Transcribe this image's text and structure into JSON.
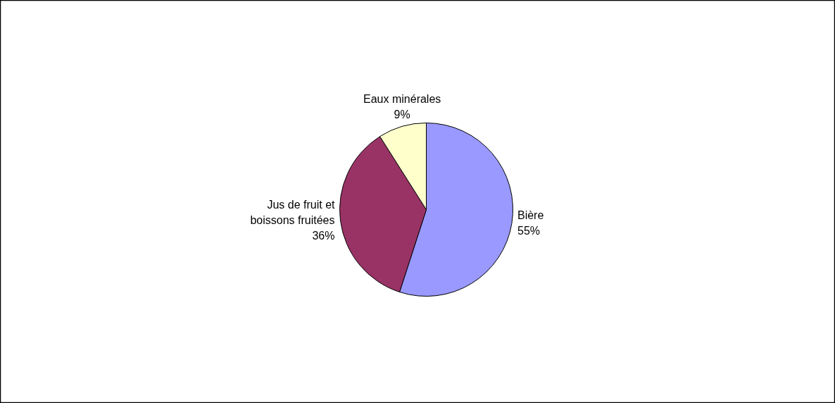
{
  "chart_data": {
    "type": "pie",
    "categories": [
      "Bière",
      "Jus de fruit et boissons fruitées",
      "Eaux minérales"
    ],
    "values": [
      55,
      36,
      9
    ],
    "value_labels": [
      "55%",
      "36%",
      "9%"
    ],
    "colors": [
      "#9999ff",
      "#993366",
      "#ffffcc"
    ]
  }
}
